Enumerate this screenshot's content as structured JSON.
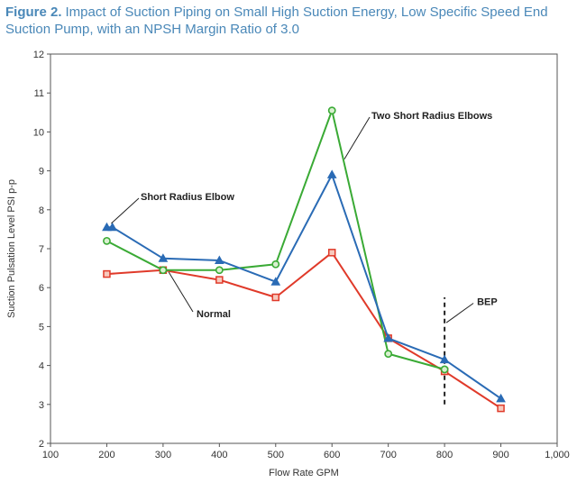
{
  "figure": {
    "label": "Figure 2.",
    "caption": "Impact of Suction Piping on Small High Suction Energy, Low Specific Speed End Suction Pump, with an NPSH Margin Ratio of 3.0"
  },
  "chart_data": {
    "type": "line",
    "xlabel": "Flow Rate GPM",
    "ylabel": "Suction Pulsation Level PSI p-p",
    "xlim": [
      100,
      1000
    ],
    "ylim": [
      2,
      12
    ],
    "xticks": [
      100,
      200,
      300,
      400,
      500,
      600,
      700,
      800,
      900,
      1000
    ],
    "xtick_labels": [
      "100",
      "200",
      "300",
      "400",
      "500",
      "600",
      "700",
      "800",
      "900",
      "1,000"
    ],
    "yticks": [
      2,
      3,
      4,
      5,
      6,
      7,
      8,
      9,
      10,
      11,
      12
    ],
    "grid": false,
    "series": [
      {
        "name": "Two Short Radius Elbows",
        "color": "#3aaa35",
        "marker": "circle",
        "x": [
          200,
          300,
          400,
          500,
          600,
          700,
          800
        ],
        "y": [
          7.2,
          6.45,
          6.45,
          6.6,
          10.55,
          4.3,
          3.9
        ]
      },
      {
        "name": "Short Radius Elbow",
        "color": "#2a6bb5",
        "marker": "triangle",
        "x": [
          200,
          210,
          300,
          400,
          500,
          600,
          700,
          800,
          900
        ],
        "y": [
          7.55,
          7.55,
          6.75,
          6.7,
          6.15,
          8.9,
          4.7,
          4.15,
          3.15
        ]
      },
      {
        "name": "Normal",
        "color": "#e03a2a",
        "marker": "square",
        "x": [
          200,
          300,
          400,
          500,
          600,
          700,
          800,
          900
        ],
        "y": [
          6.35,
          6.45,
          6.2,
          5.75,
          6.9,
          4.7,
          3.85,
          2.9
        ]
      }
    ],
    "annotations": [
      {
        "text": "Two Short Radius Elbows",
        "series": 0
      },
      {
        "text": "Short Radius Elbow",
        "series": 1
      },
      {
        "text": "Normal",
        "series": 2
      },
      {
        "text": "BEP",
        "x": 800
      }
    ],
    "reference_line": {
      "x": 800,
      "y_from": 3,
      "y_to": 5.75,
      "style": "dashed"
    }
  }
}
